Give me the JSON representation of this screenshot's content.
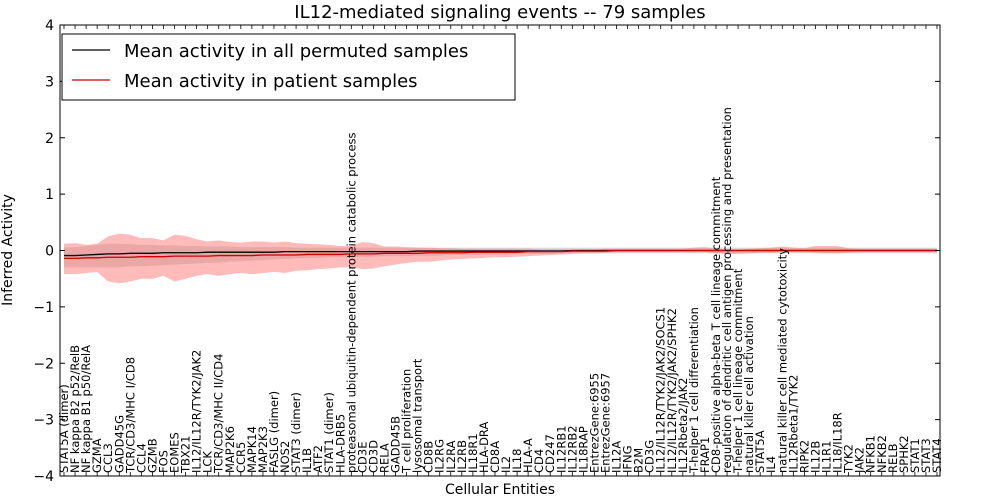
{
  "chart_data": {
    "type": "line",
    "title": "IL12-mediated signaling events -- 79 samples",
    "xlabel": "Cellular Entities",
    "ylabel": "Inferred Activity",
    "ylim": [
      -4,
      4
    ],
    "yticks": [
      -4,
      -3,
      -2,
      -1,
      0,
      1,
      2,
      3,
      4
    ],
    "grid": false,
    "legend_position": "top-left",
    "categories": [
      "STAT5A (dimer)",
      "NF kappa B2 p52/RelB",
      "NF kappa B1 p50/RelA",
      "GZMA",
      "CCL3",
      "GADD45G",
      "TCR/CD3/MHC I/CD8",
      "CCL4",
      "GZMB",
      "FOS",
      "EOMES",
      "TBX21",
      "IL12/IL12R/TYK2/JAK2",
      "LCK",
      "TCR/CD3/MHC II/CD4",
      "MAP2K6",
      "CCR5",
      "MAPK14",
      "MAP2K3",
      "FASLG (dimer)",
      "NOS2",
      "STAT3 (dimer)",
      "IL1B",
      "ATF2",
      "STAT1 (dimer)",
      "HLA-DRB5",
      "proteasomal ubiquitin-dependent protein catabolic process",
      "CD3E",
      "CD3D",
      "RELA",
      "GADD45B",
      "T cell proliferation",
      "lysosomal transport",
      "CD8B",
      "IL2RG",
      "IL2RA",
      "IL2RB",
      "IL18R1",
      "HLA-DRA",
      "CD8A",
      "IL2",
      "IL18",
      "HLA-A",
      "CD4",
      "CD247",
      "IL12RB1",
      "IL12RB2",
      "IL18RAP",
      "EntrezGene:6955",
      "EntrezGene:6957",
      "IL12A",
      "IFNG",
      "B2M",
      "CD3G",
      "IL12/IL12R/TYK2/JAK2/SOCS1",
      "IL12/IL12R/TYK2/JAK2/SPHK2",
      "IL12Rbeta2/JAK2",
      "T-helper 1 cell differentiation",
      "FRAP1",
      "CD8-positive alpha-beta T cell lineage commitment",
      "regulation of dendritic cell antigen processing and presentation",
      "T-helper 1 cell lineage commitment",
      "natural killer cell activation",
      "STAT5A",
      "IL4",
      "natural killer cell mediated cytotoxicity",
      "IL12Rbeta1/TYK2",
      "RIPK2",
      "IL12B",
      "IL1R1",
      "IL18/IL18R",
      "TYK2",
      "JAK2",
      "NFKB1",
      "NFKB2",
      "RELB",
      "SPHK2",
      "STAT1",
      "STAT3",
      "STAT4"
    ],
    "series": [
      {
        "name": "Mean activity in all permuted samples",
        "color": "#000000",
        "values": [
          -0.09,
          -0.09,
          -0.08,
          -0.07,
          -0.06,
          -0.06,
          -0.05,
          -0.05,
          -0.05,
          -0.04,
          -0.04,
          -0.04,
          -0.04,
          -0.03,
          -0.03,
          -0.03,
          -0.03,
          -0.03,
          -0.03,
          -0.03,
          -0.02,
          -0.02,
          -0.02,
          -0.02,
          -0.02,
          -0.02,
          -0.02,
          -0.02,
          -0.02,
          -0.02,
          -0.02,
          -0.02,
          -0.01,
          -0.01,
          -0.01,
          -0.01,
          -0.01,
          -0.01,
          -0.01,
          -0.01,
          -0.01,
          -0.01,
          -0.01,
          -0.01,
          -0.01,
          -0.01,
          0,
          0,
          0,
          0,
          0,
          0,
          0,
          0,
          0,
          0,
          0,
          0,
          0,
          0,
          0,
          0,
          0,
          0,
          0,
          0,
          0,
          0,
          0,
          0,
          0,
          0,
          0,
          0,
          0,
          0,
          0,
          0,
          0,
          0
        ],
        "band_lower": [
          -0.3,
          -0.3,
          -0.3,
          -0.3,
          -0.3,
          -0.3,
          -0.28,
          -0.28,
          -0.27,
          -0.26,
          -0.25,
          -0.24,
          -0.23,
          -0.22,
          -0.21,
          -0.2,
          -0.19,
          -0.18,
          -0.17,
          -0.16,
          -0.15,
          -0.14,
          -0.13,
          -0.13,
          -0.12,
          -0.12,
          -0.12,
          -0.11,
          -0.11,
          -0.1,
          -0.1,
          -0.1,
          -0.09,
          -0.09,
          -0.09,
          -0.08,
          -0.08,
          -0.08,
          -0.07,
          -0.07,
          -0.07,
          -0.06,
          -0.06,
          -0.06,
          -0.06,
          -0.05,
          -0.05,
          -0.05,
          -0.05,
          -0.05,
          -0.05,
          -0.05,
          -0.05,
          -0.05,
          -0.05,
          -0.05,
          -0.05,
          -0.05,
          -0.05,
          -0.05,
          -0.05,
          -0.05,
          -0.05,
          -0.05,
          -0.05,
          -0.05,
          -0.05,
          -0.05,
          -0.05,
          -0.05,
          -0.05,
          -0.05,
          -0.05,
          -0.05,
          -0.05,
          -0.05,
          -0.05,
          -0.05,
          -0.05,
          -0.05
        ],
        "band_upper": [
          0.05,
          0.06,
          0.08,
          0.1,
          0.12,
          0.12,
          0.11,
          0.1,
          0.1,
          0.09,
          0.09,
          0.08,
          0.08,
          0.07,
          0.07,
          0.07,
          0.06,
          0.06,
          0.06,
          0.06,
          0.06,
          0.05,
          0.05,
          0.05,
          0.05,
          0.05,
          0.05,
          0.05,
          0.05,
          0.05,
          0.05,
          0.05,
          0.05,
          0.05,
          0.05,
          0.05,
          0.05,
          0.05,
          0.05,
          0.05,
          0.05,
          0.05,
          0.05,
          0.05,
          0.05,
          0.05,
          0.05,
          0.05,
          0.05,
          0.05,
          0.05,
          0.05,
          0.05,
          0.05,
          0.05,
          0.05,
          0.05,
          0.05,
          0.05,
          0.05,
          0.05,
          0.05,
          0.05,
          0.05,
          0.05,
          0.05,
          0.05,
          0.05,
          0.05,
          0.05,
          0.05,
          0.05,
          0.05,
          0.05,
          0.05,
          0.05,
          0.05,
          0.05,
          0.05,
          0.05
        ]
      },
      {
        "name": "Mean activity in patient samples",
        "color": "#cc0000",
        "values": [
          -0.14,
          -0.14,
          -0.13,
          -0.13,
          -0.12,
          -0.12,
          -0.12,
          -0.11,
          -0.11,
          -0.11,
          -0.1,
          -0.1,
          -0.1,
          -0.1,
          -0.09,
          -0.09,
          -0.09,
          -0.09,
          -0.08,
          -0.08,
          -0.08,
          -0.08,
          -0.07,
          -0.07,
          -0.07,
          -0.07,
          -0.06,
          -0.06,
          -0.06,
          -0.05,
          -0.05,
          -0.05,
          -0.05,
          -0.04,
          -0.04,
          -0.04,
          -0.04,
          -0.03,
          -0.03,
          -0.03,
          -0.03,
          -0.03,
          -0.02,
          -0.02,
          -0.02,
          -0.02,
          -0.01,
          -0.01,
          -0.01,
          -0.01,
          0,
          0,
          0,
          0,
          0,
          0,
          0,
          0,
          0,
          0,
          0,
          0,
          0,
          0,
          0,
          0,
          0,
          0,
          0,
          0,
          0,
          0,
          0,
          0,
          0,
          0,
          0,
          0,
          0,
          0
        ],
        "band_lower": [
          -0.42,
          -0.42,
          -0.4,
          -0.38,
          -0.55,
          -0.58,
          -0.55,
          -0.5,
          -0.5,
          -0.45,
          -0.55,
          -0.5,
          -0.45,
          -0.42,
          -0.45,
          -0.42,
          -0.4,
          -0.42,
          -0.4,
          -0.38,
          -0.4,
          -0.36,
          -0.35,
          -0.33,
          -0.32,
          -0.3,
          -0.3,
          -0.33,
          -0.32,
          -0.28,
          -0.25,
          -0.22,
          -0.2,
          -0.2,
          -0.18,
          -0.16,
          -0.15,
          -0.14,
          -0.13,
          -0.12,
          -0.12,
          -0.11,
          -0.1,
          -0.09,
          -0.08,
          -0.07,
          -0.06,
          -0.05,
          -0.05,
          -0.04,
          -0.03,
          -0.03,
          -0.03,
          -0.03,
          -0.03,
          -0.03,
          -0.03,
          -0.03,
          -0.03,
          -0.05,
          -0.06,
          -0.06,
          -0.05,
          -0.04,
          -0.04,
          -0.03,
          -0.03,
          -0.03,
          -0.04,
          -0.05,
          -0.05,
          -0.04,
          -0.03,
          -0.03,
          -0.03,
          -0.03,
          -0.03,
          -0.03,
          -0.03,
          -0.03
        ],
        "band_upper": [
          0.12,
          0.13,
          0.1,
          0.12,
          0.25,
          0.3,
          0.28,
          0.22,
          0.22,
          0.18,
          0.28,
          0.26,
          0.2,
          0.16,
          0.18,
          0.15,
          0.14,
          0.16,
          0.16,
          0.14,
          0.16,
          0.13,
          0.12,
          0.11,
          0.1,
          0.08,
          0.08,
          0.15,
          0.13,
          0.07,
          0.07,
          0.06,
          0.05,
          0.05,
          0.04,
          0.04,
          0.03,
          0.03,
          0.03,
          0.03,
          0.03,
          0.03,
          0.03,
          0.02,
          0.02,
          0.02,
          0.02,
          0.02,
          0.02,
          0.03,
          0.03,
          0.03,
          0.03,
          0.03,
          0.03,
          0.03,
          0.03,
          0.05,
          0.06,
          0.03,
          0.02,
          0.02,
          0.03,
          0.04,
          0.05,
          0.07,
          0.05,
          0.04,
          0.08,
          0.08,
          0.08,
          0.04,
          0.03,
          0.03,
          0.03,
          0.03,
          0.03,
          0.03,
          0.03,
          0.03
        ]
      }
    ]
  }
}
